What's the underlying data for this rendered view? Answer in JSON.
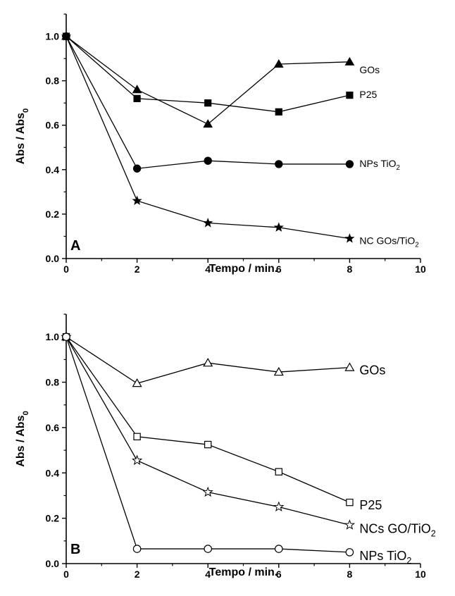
{
  "chart_data": [
    {
      "type": "line",
      "panel_label": "A",
      "xlabel": "Tempo / min.",
      "ylabel": "Abs / Abs0",
      "xlim": [
        0,
        10
      ],
      "ylim": [
        0,
        1.1
      ],
      "xticks": [
        "0",
        "2",
        "4",
        "6",
        "8",
        "10"
      ],
      "yticks": [
        "0.0",
        "0.2",
        "0.4",
        "0.6",
        "0.8",
        "1.0"
      ],
      "grid": false,
      "series": [
        {
          "name": "GOs",
          "marker": "triangle",
          "filled": true,
          "points": [
            [
              0,
              1.0
            ],
            [
              2,
              0.76
            ],
            [
              4,
              0.605
            ],
            [
              6,
              0.875
            ],
            [
              8,
              0.885
            ]
          ]
        },
        {
          "name": "P25",
          "marker": "square",
          "filled": true,
          "points": [
            [
              0,
              1.0
            ],
            [
              2,
              0.72
            ],
            [
              4,
              0.7
            ],
            [
              6,
              0.66
            ],
            [
              8,
              0.735
            ]
          ]
        },
        {
          "name": "NPs TiO2",
          "marker": "circle",
          "filled": true,
          "points": [
            [
              0,
              1.0
            ],
            [
              2,
              0.405
            ],
            [
              4,
              0.44
            ],
            [
              6,
              0.425
            ],
            [
              8,
              0.425
            ]
          ]
        },
        {
          "name": "NC GOs/TiO2",
          "marker": "star",
          "filled": true,
          "points": [
            [
              0,
              1.0
            ],
            [
              2,
              0.26
            ],
            [
              4,
              0.16
            ],
            [
              6,
              0.14
            ],
            [
              8,
              0.09
            ]
          ]
        }
      ]
    },
    {
      "type": "line",
      "panel_label": "B",
      "xlabel": "Tempo / min.",
      "ylabel": "Abs / Abs0",
      "xlim": [
        0,
        10
      ],
      "ylim": [
        0,
        1.1
      ],
      "xticks": [
        "0",
        "2",
        "4",
        "6",
        "8",
        "10"
      ],
      "yticks": [
        "0.0",
        "0.2",
        "0.4",
        "0.6",
        "0.8",
        "1.0"
      ],
      "grid": false,
      "series": [
        {
          "name": "GOs",
          "marker": "triangle",
          "filled": false,
          "points": [
            [
              0,
              1.0
            ],
            [
              2,
              0.795
            ],
            [
              4,
              0.885
            ],
            [
              6,
              0.845
            ],
            [
              8,
              0.865
            ]
          ]
        },
        {
          "name": "P25",
          "marker": "square",
          "filled": false,
          "points": [
            [
              0,
              1.0
            ],
            [
              2,
              0.56
            ],
            [
              4,
              0.525
            ],
            [
              6,
              0.405
            ],
            [
              8,
              0.27
            ]
          ]
        },
        {
          "name": "NCs GO/TiO2",
          "marker": "star",
          "filled": false,
          "points": [
            [
              0,
              1.0
            ],
            [
              2,
              0.455
            ],
            [
              4,
              0.315
            ],
            [
              6,
              0.25
            ],
            [
              8,
              0.17
            ]
          ]
        },
        {
          "name": "NPs TiO2",
          "marker": "circle",
          "filled": false,
          "points": [
            [
              0,
              1.0
            ],
            [
              2,
              0.065
            ],
            [
              4,
              0.065
            ],
            [
              6,
              0.065
            ],
            [
              8,
              0.05
            ]
          ]
        }
      ]
    }
  ]
}
